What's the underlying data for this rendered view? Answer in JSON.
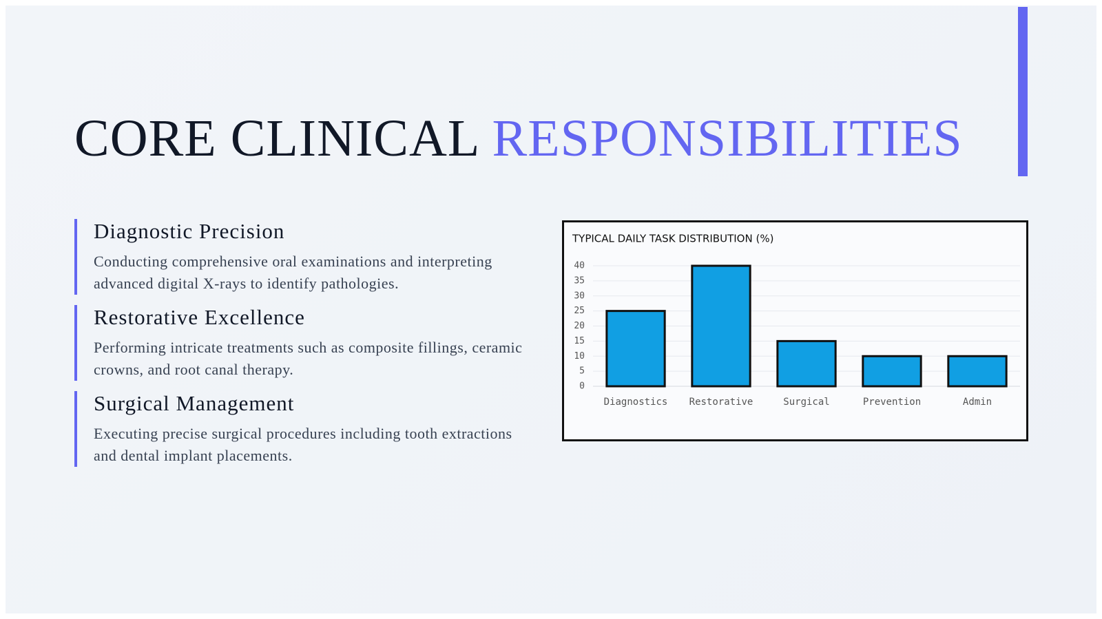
{
  "header": {
    "title_dark": "CORE CLINICAL",
    "title_accent": "RESPONSIBILITIES"
  },
  "items": [
    {
      "heading": "Diagnostic Precision",
      "text": "Conducting comprehensive oral examinations and interpreting advanced digital X-rays to identify pathologies."
    },
    {
      "heading": "Restorative Excellence",
      "text": "Performing intricate treatments such as composite fillings, ceramic crowns, and root canal therapy."
    },
    {
      "heading": "Surgical Management",
      "text": "Executing precise surgical procedures including tooth extractions and dental implant placements."
    }
  ],
  "chart_data": {
    "type": "bar",
    "title": "TYPICAL DAILY TASK DISTRIBUTION (%)",
    "categories": [
      "Diagnostics",
      "Restorative",
      "Surgical",
      "Prevention",
      "Admin"
    ],
    "values": [
      25,
      40,
      15,
      10,
      10
    ],
    "color": "#119fe3",
    "ylim": [
      0,
      40
    ],
    "yticks": [
      0,
      5,
      10,
      15,
      20,
      25,
      30,
      35,
      40
    ],
    "grid": true
  }
}
